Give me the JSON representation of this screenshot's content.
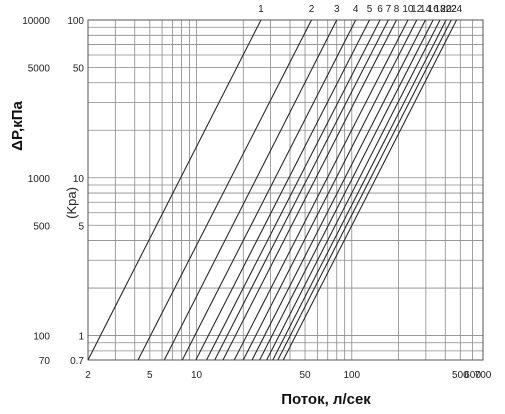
{
  "chart_data": {
    "type": "line",
    "xlabel": "Поток, л/сек",
    "ylabel": "ΔP,кПа",
    "ylabel_secondary": "(Kpa)",
    "x_scale": "log",
    "y_scale": "log",
    "xlim": [
      2,
      700
    ],
    "ylim": [
      70,
      10000
    ],
    "x_ticks": [
      {
        "value": 2,
        "label": "2"
      },
      {
        "value": 5,
        "label": "5"
      },
      {
        "value": 10,
        "label": "10"
      },
      {
        "value": 50,
        "label": "50"
      },
      {
        "value": 100,
        "label": "100"
      },
      {
        "value": 500,
        "label": "500"
      },
      {
        "value": 600,
        "label": "600"
      },
      {
        "value": 700,
        "label": "700"
      }
    ],
    "y_ticks_left": [
      {
        "value": 10000,
        "label": "10000"
      },
      {
        "value": 5000,
        "label": "5000"
      },
      {
        "value": 1000,
        "label": "1000"
      },
      {
        "value": 500,
        "label": "500"
      },
      {
        "value": 100,
        "label": "100"
      },
      {
        "value": 70,
        "label": "70"
      }
    ],
    "y_ticks_inner": [
      {
        "value": 10000,
        "label": "100"
      },
      {
        "value": 5000,
        "label": "50"
      },
      {
        "value": 1000,
        "label": "10"
      },
      {
        "value": 500,
        "label": "5"
      },
      {
        "value": 100,
        "label": "1"
      },
      {
        "value": 70,
        "label": "0.7"
      }
    ],
    "grid": true,
    "series": [
      {
        "name": "1",
        "x": [
          2,
          26
        ],
        "y": [
          70,
          10000
        ]
      },
      {
        "name": "2",
        "x": [
          4.2,
          55
        ],
        "y": [
          70,
          10000
        ]
      },
      {
        "name": "3",
        "x": [
          6.2,
          80
        ],
        "y": [
          70,
          10000
        ]
      },
      {
        "name": "4",
        "x": [
          8.1,
          106
        ],
        "y": [
          70,
          10000
        ]
      },
      {
        "name": "5",
        "x": [
          9.9,
          130
        ],
        "y": [
          70,
          10000
        ]
      },
      {
        "name": "6",
        "x": [
          11.6,
          152
        ],
        "y": [
          70,
          10000
        ]
      },
      {
        "name": "7",
        "x": [
          13.1,
          172
        ],
        "y": [
          70,
          10000
        ]
      },
      {
        "name": "8",
        "x": [
          14.8,
          194
        ],
        "y": [
          70,
          10000
        ]
      },
      {
        "name": "10",
        "x": [
          17.5,
          230
        ],
        "y": [
          70,
          10000
        ]
      },
      {
        "name": "12",
        "x": [
          20,
          262
        ],
        "y": [
          70,
          10000
        ]
      },
      {
        "name": "14",
        "x": [
          22.8,
          298
        ],
        "y": [
          70,
          10000
        ]
      },
      {
        "name": "16",
        "x": [
          25.5,
          334
        ],
        "y": [
          70,
          10000
        ]
      },
      {
        "name": "18",
        "x": [
          28.3,
          370
        ],
        "y": [
          70,
          10000
        ]
      },
      {
        "name": "20",
        "x": [
          31,
          405
        ],
        "y": [
          70,
          10000
        ]
      },
      {
        "name": "22",
        "x": [
          33.4,
          437
        ],
        "y": [
          70,
          10000
        ]
      },
      {
        "name": "24",
        "x": [
          36.2,
          473
        ],
        "y": [
          70,
          10000
        ]
      }
    ]
  }
}
